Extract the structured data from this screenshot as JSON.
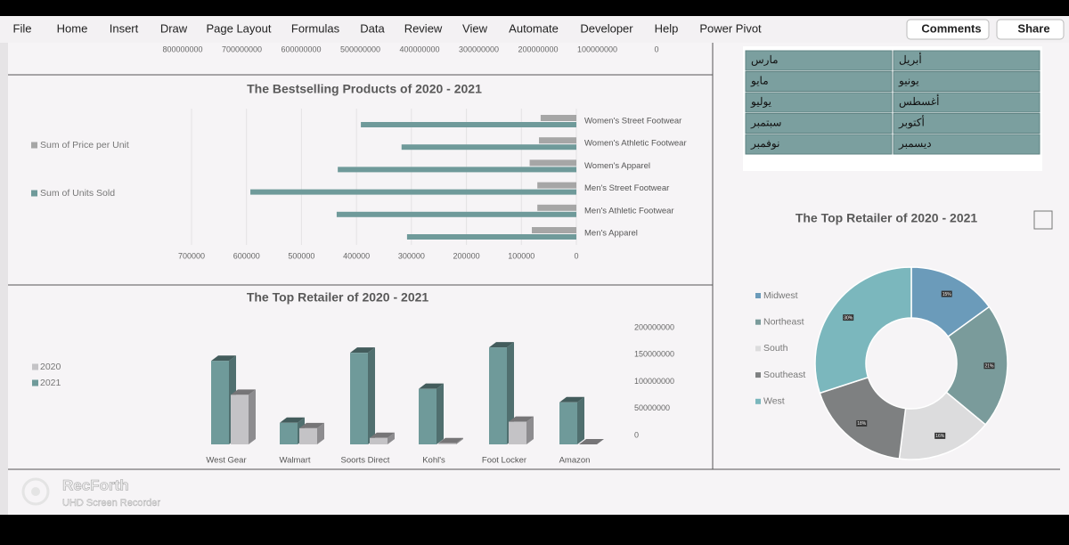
{
  "ribbon": {
    "tabs": [
      "File",
      "Home",
      "Insert",
      "Draw",
      "Page Layout",
      "Formulas",
      "Data",
      "Review",
      "View",
      "Automate",
      "Developer",
      "Help",
      "Power Pivot"
    ],
    "buttons": [
      "Comments",
      "Share"
    ]
  },
  "chart_data": [
    {
      "type": "bar",
      "orientation": "horizontal",
      "x_reversed": true,
      "xlim": [
        0,
        800000000
      ],
      "xticks": [
        0,
        100000000,
        200000000,
        300000000,
        400000000,
        500000000,
        600000000,
        700000000,
        800000000
      ],
      "grid": false
    },
    {
      "type": "bar",
      "orientation": "horizontal",
      "title": "The Bestselling Products of 2020 - 2021",
      "categories": [
        "Women's Street Footwear",
        "Women's Athletic Footwear",
        "Women's Apparel",
        "Men's Street Footwear",
        "Men's Athletic Footwear",
        "Men's Apparel"
      ],
      "series": [
        {
          "name": "Sum of Price per Unit",
          "color": "#a6a6a6",
          "values": [
            65000,
            68000,
            85000,
            71000,
            71000,
            81000
          ]
        },
        {
          "name": "Sum of Units Sold",
          "color": "#6f9a9a",
          "values": [
            392000,
            318000,
            434000,
            593000,
            436000,
            308000
          ]
        }
      ],
      "x_reversed": true,
      "xlim": [
        0,
        700000
      ],
      "xticks": [
        0,
        100000,
        200000,
        300000,
        400000,
        500000,
        600000,
        700000
      ],
      "grid": true,
      "legend": "left"
    },
    {
      "type": "bar3d",
      "orientation": "vertical",
      "title": "The Top Retailer of 2020 - 2021",
      "categories": [
        "West Gear",
        "Walmart",
        "Soorts Direct",
        "Kohl's",
        "Foot Locker",
        "Amazon"
      ],
      "series": [
        {
          "name": "2020",
          "color": "#c4c3c6",
          "values": [
            92000000,
            30000000,
            12000000,
            2000000,
            42000000,
            0
          ]
        },
        {
          "name": "2021",
          "color": "#6f9a9a",
          "values": [
            155000000,
            40000000,
            170000000,
            103000000,
            180000000,
            78000000
          ]
        }
      ],
      "ylim": [
        0,
        200000000
      ],
      "yticks": [
        0,
        50000000,
        100000000,
        150000000,
        200000000
      ],
      "legend": "left"
    },
    {
      "type": "doughnut",
      "title": "The Top Retailer of 2020 - 2021",
      "categories": [
        "Midwest",
        "Northeast",
        "South",
        "Southeast",
        "West"
      ],
      "values": [
        15,
        21,
        16,
        18,
        30
      ],
      "value_labels": [
        "15%",
        "21%",
        "16%",
        "18%",
        "30%"
      ],
      "colors": [
        "#6b9bba",
        "#7a9b9b",
        "#dcdcdd",
        "#7e8081",
        "#7bb7bd"
      ],
      "legend": "left"
    }
  ],
  "table": {
    "rows": [
      [
        "مارس",
        "أبريل"
      ],
      [
        "مايو",
        "يونيو"
      ],
      [
        "يوليو",
        "أغسطس"
      ],
      [
        "سبتمبر",
        "أكتوبر"
      ],
      [
        "نوفمبر",
        "ديسمبر"
      ]
    ]
  },
  "watermark": {
    "title": "RecForth",
    "subtitle": "UHD Screen Recorder"
  }
}
